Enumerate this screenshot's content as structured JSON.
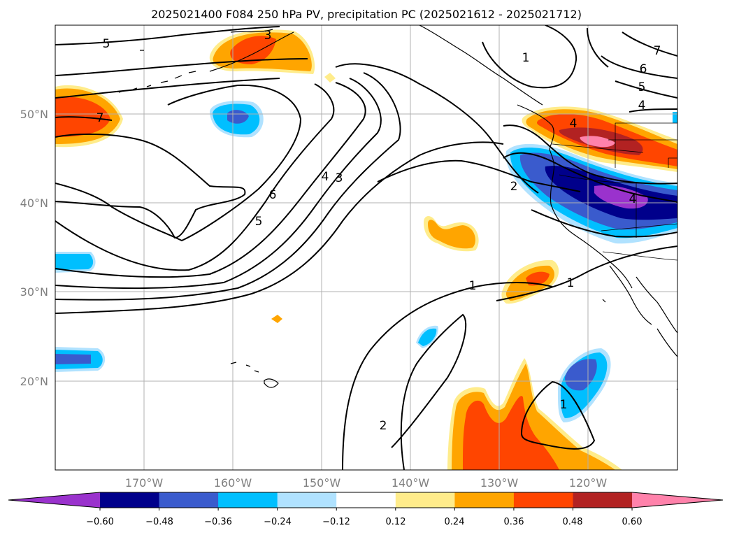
{
  "title": "2025021400 F084 250 hPa PV, precipitation PC (2025021612 - 2025021712)",
  "map": {
    "projection": "lat-lon",
    "lon_range": [
      -180,
      -110
    ],
    "lat_range": [
      10,
      60
    ],
    "gridlines": true
  },
  "axes": {
    "lat_ticks": [
      "50°N",
      "40°N",
      "30°N",
      "20°N"
    ],
    "lon_ticks": [
      "170°W",
      "160°W",
      "150°W",
      "140°W",
      "130°W",
      "120°W"
    ]
  },
  "colorbar": {
    "ticks": [
      "−0.60",
      "−0.48",
      "−0.36",
      "−0.24",
      "−0.12",
      "0.12",
      "0.24",
      "0.36",
      "0.48",
      "0.60"
    ],
    "colors": [
      "#9a32cd",
      "#00008b",
      "#3a5bcd",
      "#00bfff",
      "#b0e2ff",
      "#ffffff",
      "#ffec8b",
      "#ffa500",
      "#ff4500",
      "#b22222",
      "#ff82ab"
    ],
    "extend": "both"
  },
  "contour_labels": [
    "5",
    "3",
    "1",
    "7",
    "6",
    "5",
    "4",
    "7",
    "4",
    "3",
    "6",
    "5",
    "2",
    "4",
    "1",
    "1",
    "2",
    "1",
    "4"
  ]
}
